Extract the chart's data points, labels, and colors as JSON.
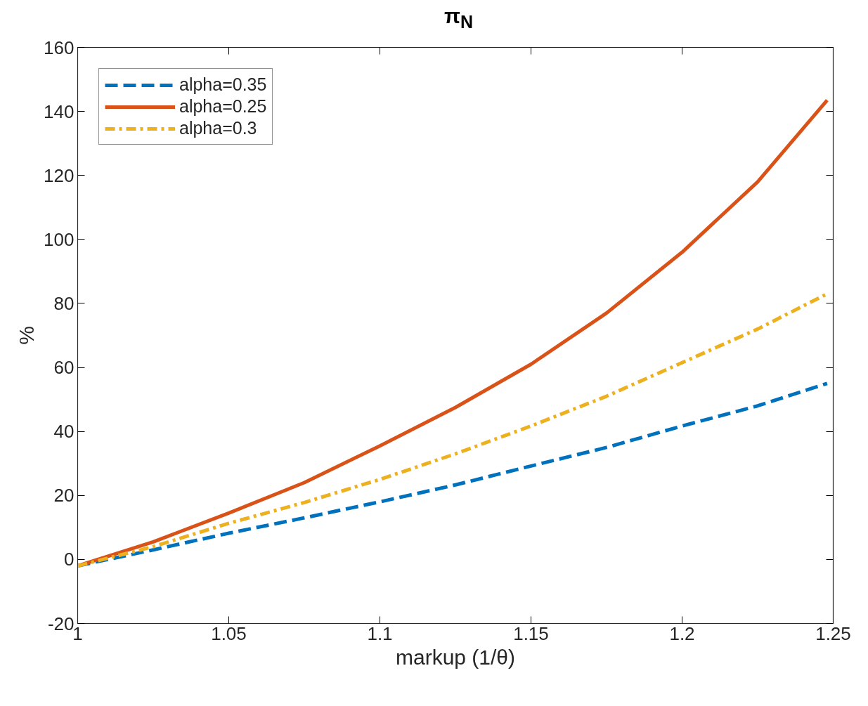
{
  "chart_data": {
    "type": "line",
    "title": "π$_{N}$",
    "xlabel": "markup (1/θ)",
    "ylabel": "%",
    "x": [
      1.0,
      1.025,
      1.05,
      1.075,
      1.1,
      1.125,
      1.15,
      1.175,
      1.2,
      1.225,
      1.248
    ],
    "series": [
      {
        "name": "alpha=0.35",
        "color": "#0072bd",
        "line_style": "dashed",
        "values": [
          -2,
          3,
          8.2,
          13,
          18,
          23.3,
          29.2,
          35,
          41.7,
          48,
          55
        ]
      },
      {
        "name": "alpha=0.25",
        "color": "#d95319",
        "line_style": "solid",
        "values": [
          -2,
          5.5,
          14.5,
          24,
          35.5,
          47.5,
          61,
          77,
          96,
          118,
          143.5
        ]
      },
      {
        "name": "alpha=0.3",
        "color": "#edb120",
        "line_style": "dashdot",
        "values": [
          -2,
          4,
          11.3,
          17.8,
          25,
          33,
          41.7,
          51,
          61.5,
          72,
          83
        ]
      }
    ],
    "xlim": [
      1,
      1.25
    ],
    "xticks": [
      1,
      1.05,
      1.1,
      1.15,
      1.2,
      1.25
    ],
    "ylim": [
      -20,
      160
    ],
    "yticks": [
      -20,
      0,
      20,
      40,
      60,
      80,
      100,
      120,
      140,
      160
    ],
    "grid": false,
    "legend": "top left",
    "marker": "none"
  }
}
